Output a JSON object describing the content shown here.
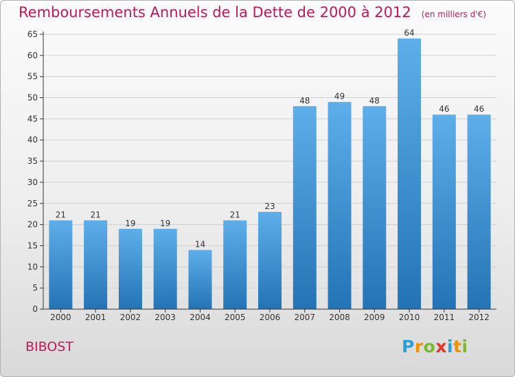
{
  "title": "Remboursements Annuels de la Dette de 2000 à 2012",
  "subtitle": "(en milliers d'€)",
  "commune": "BIBOST",
  "logo": {
    "letters": [
      {
        "ch": "P",
        "color": "#2a9fd8"
      },
      {
        "ch": "r",
        "color": "#f39200"
      },
      {
        "ch": "o",
        "color": "#7cb82f"
      },
      {
        "ch": "x",
        "color": "#e6332a"
      },
      {
        "ch": "i",
        "color": "#2a9fd8"
      },
      {
        "ch": "t",
        "color": "#f39200"
      },
      {
        "ch": "i",
        "color": "#7cb82f"
      }
    ]
  },
  "colors": {
    "bar_top": "#5eaeea",
    "bar_bottom": "#2474b5",
    "grid": "#cfcfcf",
    "axis": "#333333",
    "text": "#333333"
  },
  "chart_data": {
    "type": "bar",
    "categories": [
      "2000",
      "2001",
      "2002",
      "2003",
      "2004",
      "2005",
      "2006",
      "2007",
      "2008",
      "2009",
      "2010",
      "2011",
      "2012"
    ],
    "values": [
      21,
      21,
      19,
      19,
      14,
      21,
      23,
      48,
      49,
      48,
      64,
      46,
      46
    ],
    "data_labels": [
      "21",
      "21",
      "19",
      "19",
      "14",
      "21",
      "23",
      "48",
      "49",
      "48",
      "64",
      "46",
      "46"
    ],
    "yticks": [
      0,
      5,
      10,
      15,
      20,
      25,
      30,
      35,
      40,
      45,
      50,
      55,
      60,
      65
    ],
    "ylim": [
      0,
      65
    ],
    "grid": true,
    "xlabel": "",
    "ylabel": ""
  }
}
